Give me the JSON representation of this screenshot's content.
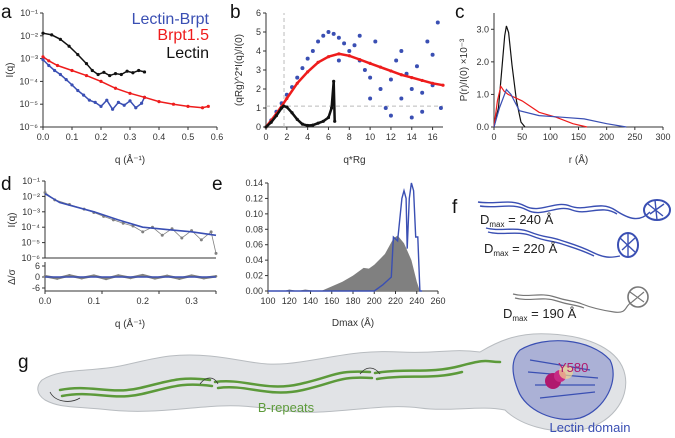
{
  "panel_letters": [
    "a",
    "b",
    "c",
    "d",
    "e",
    "f",
    "g"
  ],
  "colors": {
    "lectin_brpt": "#3a4fb3",
    "brpt15": "#ee1c1c",
    "lectin": "#111111",
    "data_grey": "#808080",
    "fit": "#3a4fb3",
    "brepeats": "#5c9a3a",
    "lectin_domain": "#3a4fb3",
    "y580": "#b0186e"
  },
  "chart_data": [
    {
      "panel": "a",
      "type": "scatter",
      "xlabel": "q (Å⁻¹)",
      "ylabel": "I(q)",
      "xlim": [
        0,
        0.6
      ],
      "ylim": [
        1e-06,
        0.1
      ],
      "yscale": "log",
      "xticks": [
        "0.0",
        "0.1",
        "0.2",
        "0.3",
        "0.4",
        "0.5",
        "0.6"
      ],
      "yticks": [
        "10⁻¹",
        "10⁻²",
        "10⁻³",
        "10⁻⁴",
        "10⁻⁵",
        "10⁻⁶"
      ],
      "legend": [
        "Lectin-Brpt",
        "Brpt1.5",
        "Lectin"
      ],
      "legend_position": "top-right",
      "series": [
        {
          "name": "Lectin-Brpt",
          "color": "#3a4fb3",
          "points": [
            [
              0,
              0.0009
            ],
            [
              0.02,
              0.0005
            ],
            [
              0.04,
              0.0003
            ],
            [
              0.06,
              0.0002
            ],
            [
              0.08,
              0.00012
            ],
            [
              0.1,
              7e-05
            ],
            [
              0.12,
              4e-05
            ],
            [
              0.14,
              2.5e-05
            ],
            [
              0.16,
              1.5e-05
            ],
            [
              0.18,
              1.2e-05
            ],
            [
              0.2,
              8e-06
            ],
            [
              0.22,
              1.5e-05
            ],
            [
              0.24,
              6e-06
            ],
            [
              0.26,
              1.2e-05
            ],
            [
              0.28,
              9e-06
            ],
            [
              0.3,
              1.4e-05
            ],
            [
              0.32,
              7e-06
            ],
            [
              0.34,
              1.1e-05
            ],
            [
              0.35,
              2e-05
            ]
          ]
        },
        {
          "name": "Brpt1.5",
          "color": "#ee1c1c",
          "points": [
            [
              0,
              0.0012
            ],
            [
              0.02,
              0.0008
            ],
            [
              0.05,
              0.0005
            ],
            [
              0.1,
              0.0003
            ],
            [
              0.15,
              0.00018
            ],
            [
              0.2,
              0.0001
            ],
            [
              0.25,
              5e-05
            ],
            [
              0.3,
              3e-05
            ],
            [
              0.35,
              2e-05
            ],
            [
              0.4,
              1.3e-05
            ],
            [
              0.45,
              1e-05
            ],
            [
              0.5,
              8e-06
            ],
            [
              0.55,
              7e-06
            ],
            [
              0.57,
              8e-06
            ]
          ]
        },
        {
          "name": "Lectin",
          "color": "#111111",
          "points": [
            [
              0,
              0.013
            ],
            [
              0.03,
              0.011
            ],
            [
              0.06,
              0.007
            ],
            [
              0.09,
              0.0035
            ],
            [
              0.12,
              0.0015
            ],
            [
              0.15,
              0.0006
            ],
            [
              0.17,
              0.0003
            ],
            [
              0.19,
              0.0002
            ],
            [
              0.21,
              0.00025
            ],
            [
              0.23,
              0.00018
            ],
            [
              0.25,
              0.00022
            ],
            [
              0.27,
              0.0002
            ],
            [
              0.29,
              0.00028
            ],
            [
              0.31,
              0.00024
            ],
            [
              0.33,
              0.0003
            ],
            [
              0.35,
              0.00026
            ]
          ]
        }
      ]
    },
    {
      "panel": "b",
      "type": "scatter",
      "xlabel": "q*Rg",
      "ylabel": "(qRg)^2*I(q)/I(0)",
      "xlim": [
        0,
        17
      ],
      "ylim": [
        0,
        6
      ],
      "xticks": [
        "0",
        "2",
        "4",
        "6",
        "8",
        "10",
        "12",
        "14",
        "16"
      ],
      "yticks": [
        "0",
        "1",
        "2",
        "3",
        "4",
        "5",
        "6"
      ],
      "guides": {
        "x": 1.73,
        "y": 1.1
      },
      "series": [
        {
          "color": "#3a4fb3",
          "points": [
            [
              0.5,
              0.35
            ],
            [
              1,
              0.8
            ],
            [
              1.5,
              1.25
            ],
            [
              2,
              1.7
            ],
            [
              2.5,
              2.1
            ],
            [
              3,
              2.6
            ],
            [
              3.5,
              3.1
            ],
            [
              4,
              3.6
            ],
            [
              4.5,
              4.0
            ],
            [
              5,
              4.5
            ],
            [
              5.5,
              4.8
            ],
            [
              6,
              5.0
            ],
            [
              6.5,
              4.9
            ],
            [
              7,
              4.7
            ],
            [
              7,
              3.5
            ],
            [
              7.5,
              4.4
            ],
            [
              8,
              4.0
            ],
            [
              8.5,
              4.3
            ],
            [
              9,
              3.5
            ],
            [
              9,
              4.8
            ],
            [
              9.5,
              3.0
            ],
            [
              10,
              2.6
            ],
            [
              10,
              1.5
            ],
            [
              10.5,
              4.5
            ],
            [
              11,
              2.0
            ],
            [
              11.5,
              1.0
            ],
            [
              12,
              2.5
            ],
            [
              12,
              0.6
            ],
            [
              12.5,
              3.5
            ],
            [
              13,
              1.5
            ],
            [
              13,
              4.0
            ],
            [
              13.5,
              2.8
            ],
            [
              14,
              0.5
            ],
            [
              14,
              2.0
            ],
            [
              14.5,
              3.2
            ],
            [
              15,
              1.8
            ],
            [
              15,
              0.8
            ],
            [
              15.5,
              4.5
            ],
            [
              16,
              2.2
            ],
            [
              16,
              3.8
            ],
            [
              16.5,
              5.5
            ],
            [
              16.8,
              1.0
            ]
          ]
        },
        {
          "color": "#ee1c1c",
          "points": [
            [
              0,
              0
            ],
            [
              1,
              0.7
            ],
            [
              2,
              1.5
            ],
            [
              3,
              2.3
            ],
            [
              4,
              2.9
            ],
            [
              5,
              3.4
            ],
            [
              6,
              3.7
            ],
            [
              7,
              3.85
            ],
            [
              8,
              3.75
            ],
            [
              9,
              3.55
            ],
            [
              10,
              3.35
            ],
            [
              11,
              3.15
            ],
            [
              12,
              2.95
            ],
            [
              13,
              2.75
            ],
            [
              14,
              2.6
            ],
            [
              15,
              2.45
            ],
            [
              16,
              2.3
            ],
            [
              17,
              2.2
            ]
          ]
        },
        {
          "color": "#111111",
          "points": [
            [
              0,
              0
            ],
            [
              0.5,
              0.25
            ],
            [
              1,
              0.6
            ],
            [
              1.5,
              1.0
            ],
            [
              1.7,
              1.1
            ],
            [
              2,
              1.05
            ],
            [
              2.5,
              0.75
            ],
            [
              3,
              0.4
            ],
            [
              3.5,
              0.15
            ],
            [
              4,
              0.08
            ],
            [
              4.5,
              0.1
            ],
            [
              5,
              0.2
            ],
            [
              5.5,
              0.3
            ],
            [
              6,
              0.5
            ],
            [
              6.3,
              1.0
            ],
            [
              6.5,
              2.4
            ],
            [
              6.6,
              0.3
            ]
          ]
        }
      ]
    },
    {
      "panel": "c",
      "type": "line",
      "xlabel": "r (Å)",
      "ylabel": "P(r)/I(0) ×10⁻³",
      "xlim": [
        0,
        300
      ],
      "ylim": [
        0,
        3.5
      ],
      "xticks": [
        "0",
        "50",
        "100",
        "150",
        "200",
        "250",
        "300"
      ],
      "yticks": [
        "0.0",
        "1.0",
        "2.0",
        "3.0"
      ],
      "series": [
        {
          "color": "#111111",
          "points": [
            [
              0,
              0
            ],
            [
              8,
              0.6
            ],
            [
              14,
              1.8
            ],
            [
              19,
              2.8
            ],
            [
              22,
              3.1
            ],
            [
              26,
              2.9
            ],
            [
              32,
              1.9
            ],
            [
              40,
              0.8
            ],
            [
              48,
              0.15
            ],
            [
              55,
              0
            ]
          ]
        },
        {
          "color": "#ee1c1c",
          "points": [
            [
              0,
              0
            ],
            [
              6,
              0.8
            ],
            [
              12,
              1.25
            ],
            [
              18,
              1.1
            ],
            [
              25,
              1.0
            ],
            [
              50,
              0.8
            ],
            [
              80,
              0.45
            ],
            [
              110,
              0.3
            ],
            [
              140,
              0.1
            ],
            [
              165,
              0
            ]
          ]
        },
        {
          "color": "#3a4fb3",
          "points": [
            [
              0,
              0
            ],
            [
              10,
              0.6
            ],
            [
              22,
              1.15
            ],
            [
              30,
              1.0
            ],
            [
              45,
              0.5
            ],
            [
              80,
              0.35
            ],
            [
              120,
              0.3
            ],
            [
              160,
              0.25
            ],
            [
              200,
              0.1
            ],
            [
              235,
              0
            ]
          ]
        }
      ]
    },
    {
      "panel": "d",
      "type": "scatter",
      "xlabel": "q (Å⁻¹)",
      "ylabel": "I(q)",
      "residual_label": "Δ/σ",
      "xlim": [
        0,
        0.35
      ],
      "ylim": [
        1e-06,
        0.1
      ],
      "yscale": "log",
      "residual_ylim": [
        -6,
        6
      ],
      "xticks": [
        "0.0",
        "0.1",
        "0.2",
        "0.3"
      ],
      "yticks": [
        "10⁻¹",
        "10⁻²",
        "10⁻³",
        "10⁻⁴",
        "10⁻⁵",
        "10⁻⁶"
      ],
      "residual_yticks": [
        "6",
        "0",
        "-6"
      ],
      "data": {
        "color": "#808080",
        "points": [
          [
            0,
            0.018
          ],
          [
            0.02,
            0.006
          ],
          [
            0.05,
            0.003
          ],
          [
            0.08,
            0.0015
          ],
          [
            0.1,
            0.0009
          ],
          [
            0.12,
            0.0005
          ],
          [
            0.14,
            0.0003
          ],
          [
            0.16,
            0.00018
          ],
          [
            0.18,
            0.00012
          ],
          [
            0.2,
            5e-05
          ],
          [
            0.22,
            0.0001
          ],
          [
            0.24,
            3e-05
          ],
          [
            0.26,
            8e-05
          ],
          [
            0.28,
            2e-05
          ],
          [
            0.3,
            6e-05
          ],
          [
            0.32,
            1.5e-05
          ],
          [
            0.34,
            5e-05
          ],
          [
            0.35,
            2e-06
          ]
        ]
      },
      "fit": {
        "color": "#3a4fb3",
        "points": [
          [
            0,
            0.015
          ],
          [
            0.03,
            0.004
          ],
          [
            0.1,
            0.001
          ],
          [
            0.15,
            0.0003
          ],
          [
            0.2,
            0.0001
          ],
          [
            0.25,
            7e-05
          ],
          [
            0.3,
            5e-05
          ],
          [
            0.35,
            3e-05
          ]
        ]
      },
      "residuals": [
        [
          0,
          0.5
        ],
        [
          0.025,
          -0.8
        ],
        [
          0.05,
          0.9
        ],
        [
          0.075,
          -0.6
        ],
        [
          0.1,
          0.7
        ],
        [
          0.125,
          -1
        ],
        [
          0.15,
          0.8
        ],
        [
          0.175,
          -0.5
        ],
        [
          0.2,
          1
        ],
        [
          0.225,
          -0.7
        ],
        [
          0.25,
          0.6
        ],
        [
          0.275,
          -0.9
        ],
        [
          0.3,
          0.7
        ],
        [
          0.325,
          -0.6
        ],
        [
          0.35,
          0.4
        ]
      ]
    },
    {
      "panel": "e",
      "type": "area",
      "xlabel": "Dmax (Å)",
      "xlim": [
        100,
        260
      ],
      "ylim": [
        0,
        0.14
      ],
      "xticks": [
        "100",
        "120",
        "140",
        "160",
        "180",
        "200",
        "220",
        "240",
        "260"
      ],
      "yticks": [
        "0.00",
        "0.02",
        "0.04",
        "0.06",
        "0.08",
        "0.10",
        "0.12",
        "0.14"
      ],
      "area": {
        "color": "#808080",
        "points": [
          [
            115,
            0
          ],
          [
            120,
            0.002
          ],
          [
            128,
            0
          ],
          [
            135,
            0.002
          ],
          [
            145,
            0
          ],
          [
            150,
            0
          ],
          [
            160,
            0.006
          ],
          [
            170,
            0.012
          ],
          [
            180,
            0.02
          ],
          [
            190,
            0.03
          ],
          [
            195,
            0.029
          ],
          [
            200,
            0.034
          ],
          [
            210,
            0.048
          ],
          [
            218,
            0.068
          ],
          [
            222,
            0.072
          ],
          [
            228,
            0.062
          ],
          [
            235,
            0.04
          ],
          [
            240,
            0.012
          ],
          [
            243,
            0
          ]
        ]
      },
      "line": {
        "color": "#3a4fb3",
        "points": [
          [
            100,
            0
          ],
          [
            200,
            0
          ],
          [
            208,
            0.008
          ],
          [
            216,
            0.018
          ],
          [
            218,
            0.07
          ],
          [
            222,
            0.065
          ],
          [
            226,
            0.12
          ],
          [
            228,
            0.13
          ],
          [
            230,
            0.12
          ],
          [
            231,
            0.055
          ],
          [
            233,
            0.12
          ],
          [
            235,
            0.14
          ],
          [
            237,
            0.13
          ],
          [
            239,
            0.07
          ],
          [
            241,
            0.07
          ],
          [
            243,
            0
          ],
          [
            245,
            0
          ]
        ]
      }
    }
  ],
  "panel_f": {
    "labels": [
      {
        "main": "D",
        "sub": "max",
        "rest": " = 240 Å"
      },
      {
        "main": "D",
        "sub": "max",
        "rest": " = 220 Å"
      },
      {
        "main": "D",
        "sub": "max",
        "rest": " = 190 Å"
      }
    ]
  },
  "panel_g": {
    "brepeats_label": "B-repeats",
    "lectin_label": "Lectin domain",
    "residue_label": "Y580"
  }
}
